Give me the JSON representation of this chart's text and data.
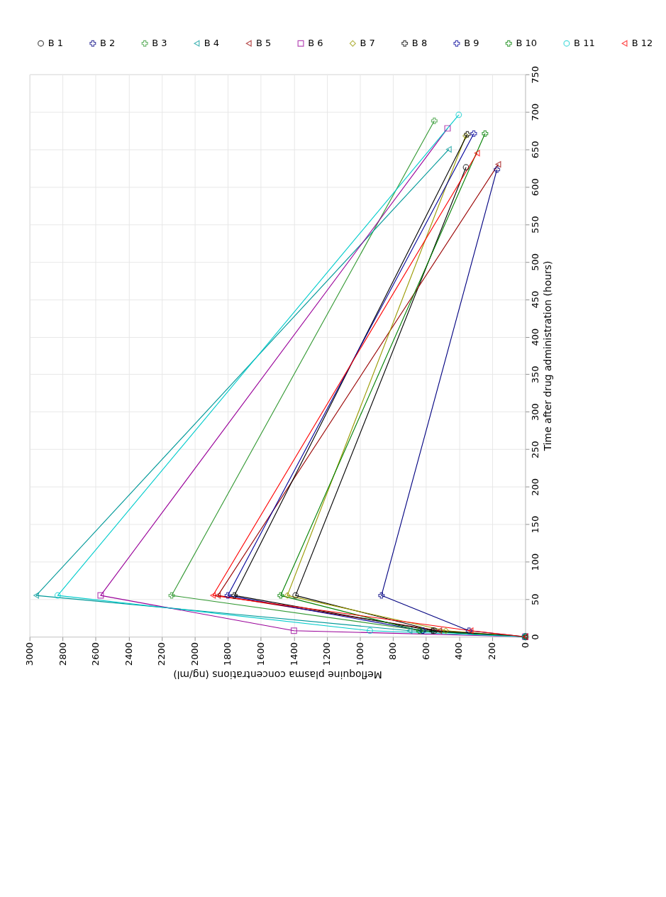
{
  "chart_data": {
    "type": "line",
    "xlabel": "Mefloquine plasma concentrations (ng/ml)",
    "ylabel": "Time after drug administration (hours)",
    "xlim": [
      3000,
      0
    ],
    "xticks": [
      3000,
      2800,
      2600,
      2400,
      2200,
      2000,
      1800,
      1600,
      1400,
      1200,
      1000,
      800,
      600,
      400,
      200,
      0
    ],
    "ylim": [
      0,
      750
    ],
    "yticks": [
      0,
      50,
      100,
      150,
      200,
      250,
      300,
      350,
      400,
      450,
      500,
      550,
      600,
      650,
      700,
      750
    ],
    "grid": true,
    "legend": "top",
    "line_style": "solid",
    "series": [
      {
        "name": "B 1",
        "color": "#000000",
        "marker": "circle",
        "x": [
          0,
          550,
          1390,
          358
        ],
        "values": [
          0,
          8,
          55,
          626
        ]
      },
      {
        "name": "B 2",
        "color": "#000080",
        "marker": "cross",
        "x": [
          0,
          340,
          870,
          171
        ],
        "values": [
          0,
          8,
          55,
          623
        ]
      },
      {
        "name": "B 3",
        "color": "#339933",
        "marker": "cross",
        "x": [
          0,
          620,
          2140,
          550
        ],
        "values": [
          0,
          8,
          55,
          688
        ]
      },
      {
        "name": "B 4",
        "color": "#009999",
        "marker": "triangle",
        "x": [
          0,
          700,
          2960,
          462
        ],
        "values": [
          0,
          8,
          55,
          650
        ]
      },
      {
        "name": "B 5",
        "color": "#990000",
        "marker": "triangle",
        "x": [
          0,
          520,
          1860,
          163
        ],
        "values": [
          0,
          8,
          55,
          630
        ]
      },
      {
        "name": "B 6",
        "color": "#990099",
        "marker": "square",
        "x": [
          0,
          1400,
          2570,
          470
        ],
        "values": [
          0,
          8,
          55,
          678
        ]
      },
      {
        "name": "B 7",
        "color": "#999900",
        "marker": "diamond",
        "x": [
          0,
          480,
          1440,
          360
        ],
        "values": [
          0,
          8,
          55,
          668
        ]
      },
      {
        "name": "B 8",
        "color": "#000000",
        "marker": "cross",
        "x": [
          0,
          560,
          1760,
          350
        ],
        "values": [
          0,
          8,
          55,
          670
        ]
      },
      {
        "name": "B 9",
        "color": "#000099",
        "marker": "cross",
        "x": [
          0,
          620,
          1800,
          311
        ],
        "values": [
          0,
          8,
          55,
          671
        ]
      },
      {
        "name": "B 10",
        "color": "#008000",
        "marker": "cross",
        "x": [
          0,
          640,
          1480,
          243
        ],
        "values": [
          0,
          8,
          55,
          671
        ]
      },
      {
        "name": "B 11",
        "color": "#00cccc",
        "marker": "circle",
        "x": [
          0,
          940,
          2830,
          402
        ],
        "values": [
          0,
          8,
          55,
          696
        ]
      },
      {
        "name": "B 12",
        "color": "#ff0000",
        "marker": "triangle",
        "x": [
          0,
          330,
          1890,
          291
        ],
        "values": [
          0,
          8,
          55,
          645
        ]
      }
    ]
  }
}
